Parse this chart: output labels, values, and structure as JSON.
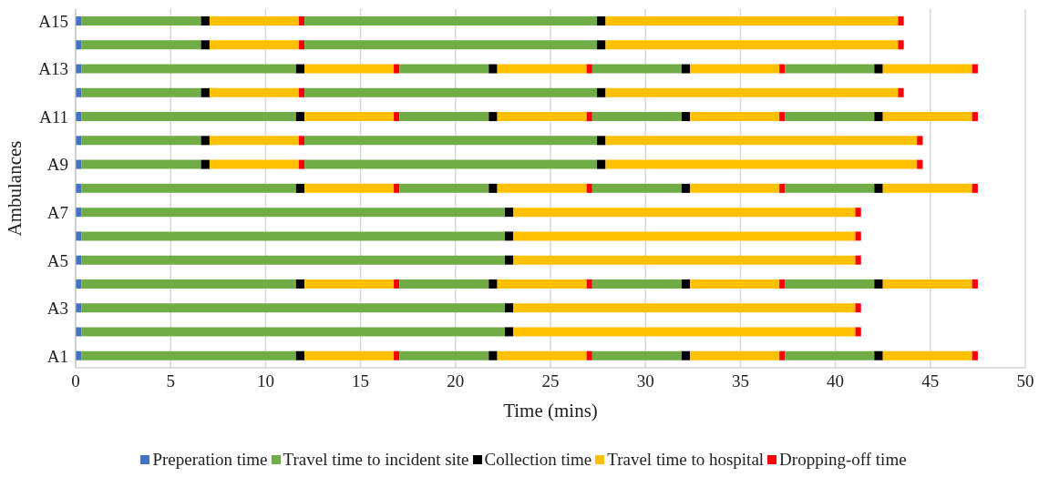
{
  "chart_data": {
    "type": "bar",
    "orientation": "horizontal",
    "stacked": true,
    "xlabel": "Time (mins)",
    "ylabel": "Ambulances",
    "categories": [
      "A15",
      null,
      "A13",
      null,
      "A11",
      null,
      "A9",
      null,
      "A7",
      null,
      "A5",
      null,
      "A3",
      null,
      "A1"
    ],
    "xlim": [
      0,
      50
    ],
    "xticks": [
      0,
      5,
      10,
      15,
      20,
      25,
      30,
      35,
      40,
      45,
      50
    ],
    "grid": "x",
    "legend": "bottom",
    "series": [
      {
        "name": "Preperation time",
        "color": "#4472c4",
        "values": [
          0.3,
          0.3,
          0.3,
          0.3,
          0.3,
          0.3,
          0.3,
          0.3,
          0.3,
          0.3,
          0.3,
          0.3,
          0.3,
          0.3,
          0.3
        ]
      },
      {
        "name": "Travel time to incident site",
        "color": "#70ad47",
        "values": [
          6.3,
          6.3,
          11.3,
          6.3,
          11.3,
          6.3,
          6.3,
          11.3,
          22.3,
          22.3,
          22.3,
          11.3,
          22.3,
          22.3,
          11.3
        ]
      },
      {
        "name": "Collection time",
        "color": "#000000",
        "values": [
          0.45,
          0.45,
          0.45,
          0.45,
          0.45,
          0.45,
          0.45,
          0.45,
          0.45,
          0.45,
          0.45,
          0.45,
          0.45,
          0.45,
          0.45
        ]
      },
      {
        "name": "Travel time to hospital",
        "color": "#ffc000",
        "values": [
          4.7,
          4.7,
          4.7,
          4.7,
          4.7,
          4.7,
          4.7,
          4.7,
          18.0,
          18.0,
          18.0,
          4.7,
          18.0,
          18.0,
          4.7
        ]
      },
      {
        "name": "Dropping-off time",
        "color": "#ff0000",
        "values": [
          0.3,
          0.3,
          0.3,
          0.3,
          0.3,
          0.3,
          0.3,
          0.3,
          0.3,
          0.3,
          0.3,
          0.3,
          0.3,
          0.3,
          0.3
        ]
      },
      {
        "color": "#70ad47",
        "values": [
          15.4,
          15.4,
          4.7,
          15.4,
          4.7,
          15.4,
          15.4,
          4.7,
          null,
          null,
          null,
          4.7,
          null,
          null,
          4.7
        ]
      },
      {
        "color": "#000000",
        "values": [
          0.45,
          0.45,
          0.45,
          0.45,
          0.45,
          0.45,
          0.45,
          0.45,
          null,
          null,
          null,
          0.45,
          null,
          null,
          0.45
        ]
      },
      {
        "color": "#ffc000",
        "values": [
          15.4,
          15.4,
          4.7,
          15.4,
          4.7,
          16.4,
          16.4,
          4.7,
          null,
          null,
          null,
          4.7,
          null,
          null,
          4.7
        ]
      },
      {
        "color": "#ff0000",
        "values": [
          0.3,
          0.3,
          0.3,
          0.3,
          0.3,
          0.3,
          0.3,
          0.3,
          null,
          null,
          null,
          0.3,
          null,
          null,
          0.3
        ]
      },
      {
        "color": "#70ad47",
        "values": [
          null,
          null,
          4.7,
          null,
          4.7,
          null,
          null,
          4.7,
          null,
          null,
          null,
          4.7,
          null,
          null,
          4.7
        ]
      },
      {
        "color": "#000000",
        "values": [
          null,
          null,
          0.45,
          null,
          0.45,
          null,
          null,
          0.45,
          null,
          null,
          null,
          0.45,
          null,
          null,
          0.45
        ]
      },
      {
        "color": "#ffc000",
        "values": [
          null,
          null,
          4.7,
          null,
          4.7,
          null,
          null,
          4.7,
          null,
          null,
          null,
          4.7,
          null,
          null,
          4.7
        ]
      },
      {
        "color": "#ff0000",
        "values": [
          null,
          null,
          0.3,
          null,
          0.3,
          null,
          null,
          0.3,
          null,
          null,
          null,
          0.3,
          null,
          null,
          0.3
        ]
      },
      {
        "color": "#70ad47",
        "values": [
          null,
          null,
          4.7,
          null,
          4.7,
          null,
          null,
          4.7,
          null,
          null,
          null,
          4.7,
          null,
          null,
          4.7
        ]
      },
      {
        "color": "#000000",
        "values": [
          null,
          null,
          0.45,
          null,
          0.45,
          null,
          null,
          0.45,
          null,
          null,
          null,
          0.45,
          null,
          null,
          0.45
        ]
      },
      {
        "color": "#ffc000",
        "values": [
          null,
          null,
          4.7,
          null,
          4.7,
          null,
          null,
          4.7,
          null,
          null,
          null,
          4.7,
          null,
          null,
          4.7
        ]
      },
      {
        "color": "#ff0000",
        "values": [
          null,
          null,
          0.3,
          null,
          0.3,
          null,
          null,
          0.3,
          null,
          null,
          null,
          0.3,
          null,
          null,
          0.3
        ]
      }
    ]
  }
}
